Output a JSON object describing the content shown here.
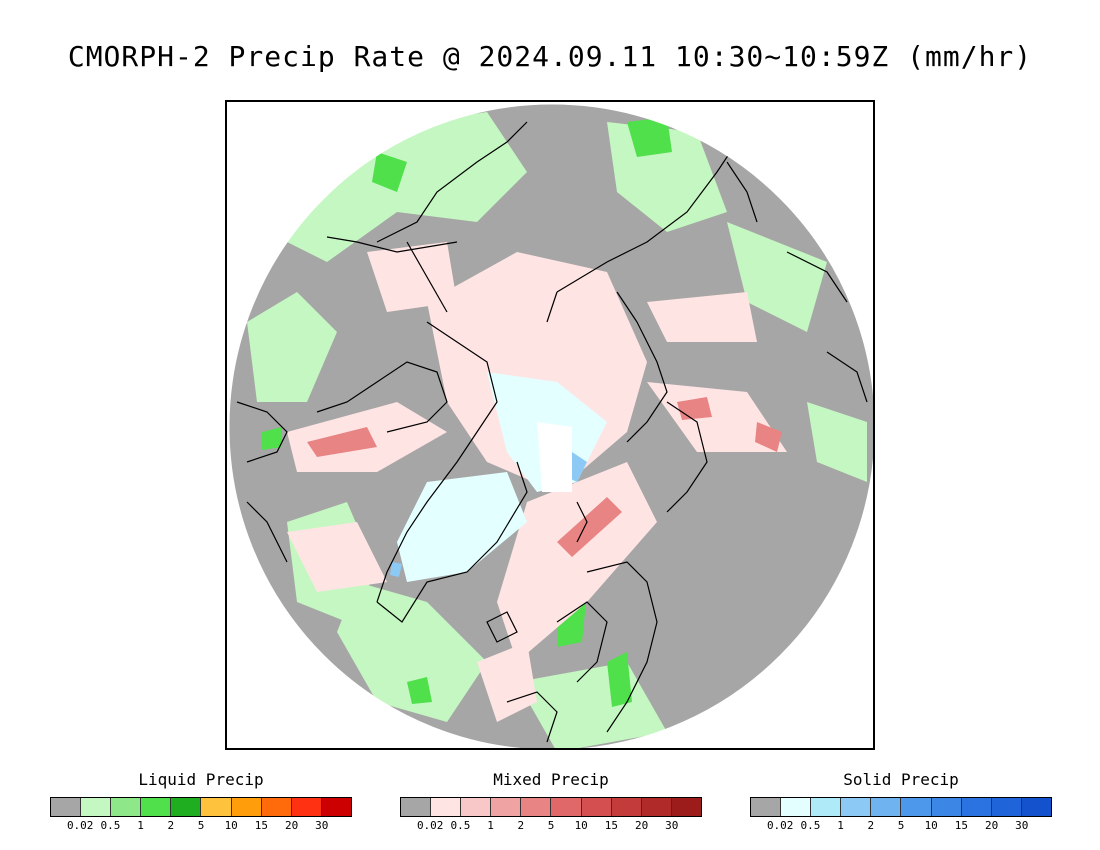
{
  "title": "CMORPH-2 Precip Rate @ 2024.09.11 10:30~10:59Z (mm/hr)",
  "map": {
    "projection": "north polar stereographic",
    "background_color": "#a6a6a6",
    "land_outline_color": "#000000"
  },
  "legends": [
    {
      "label": "Liquid Precip",
      "colors": [
        "#a6a6a6",
        "#c4f7c1",
        "#8ee88a",
        "#4fe04b",
        "#1fae1f",
        "#ffc23d",
        "#ff9d0b",
        "#ff6a0a",
        "#ff3112",
        "#cc0000"
      ],
      "ticks": [
        "0.02",
        "0.5",
        "1",
        "2",
        "5",
        "10",
        "15",
        "20",
        "30"
      ]
    },
    {
      "label": "Mixed Precip",
      "colors": [
        "#a6a6a6",
        "#ffe4e4",
        "#f8c8c8",
        "#f0a3a3",
        "#e88484",
        "#e06868",
        "#d45050",
        "#c43b3b",
        "#b02a2a",
        "#9c1c1c"
      ],
      "ticks": [
        "0.02",
        "0.5",
        "1",
        "2",
        "5",
        "10",
        "15",
        "20",
        "30"
      ]
    },
    {
      "label": "Solid Precip",
      "colors": [
        "#a6a6a6",
        "#e4ffff",
        "#aeeaf7",
        "#8ccaf5",
        "#6fb3f0",
        "#4d98ea",
        "#3c86e6",
        "#2b73e0",
        "#2064da",
        "#1451cc"
      ],
      "ticks": [
        "0.02",
        "0.5",
        "1",
        "2",
        "5",
        "10",
        "15",
        "20",
        "30"
      ]
    }
  ]
}
